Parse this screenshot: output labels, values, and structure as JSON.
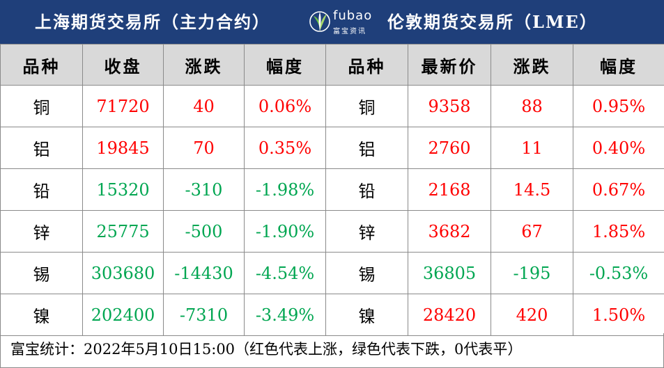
{
  "header": {
    "left_title": "上海期货交易所（主力合约）",
    "right_title": "伦敦期货交易所（LME）",
    "logo_text": "fubao",
    "logo_sub": "富宝资讯",
    "bg_color": "#1f3f7a"
  },
  "columns": [
    "品种",
    "收盘",
    "涨跌",
    "幅度",
    "品种",
    "最新价",
    "涨跌",
    "幅度"
  ],
  "colors": {
    "up": "#ff0000",
    "down": "#00a651"
  },
  "rows": [
    {
      "shfe": {
        "name": "铜",
        "close": "71720",
        "change": "40",
        "pct": "0.06%",
        "trend": "up"
      },
      "lme": {
        "name": "铜",
        "price": "9358",
        "change": "88",
        "pct": "0.95%",
        "trend": "up"
      }
    },
    {
      "shfe": {
        "name": "铝",
        "close": "19845",
        "change": "70",
        "pct": "0.35%",
        "trend": "up"
      },
      "lme": {
        "name": "铝",
        "price": "2760",
        "change": "11",
        "pct": "0.40%",
        "trend": "up"
      }
    },
    {
      "shfe": {
        "name": "铅",
        "close": "15320",
        "change": "-310",
        "pct": "-1.98%",
        "trend": "down"
      },
      "lme": {
        "name": "铅",
        "price": "2168",
        "change": "14.5",
        "pct": "0.67%",
        "trend": "up"
      }
    },
    {
      "shfe": {
        "name": "锌",
        "close": "25775",
        "change": "-500",
        "pct": "-1.90%",
        "trend": "down"
      },
      "lme": {
        "name": "锌",
        "price": "3682",
        "change": "67",
        "pct": "1.85%",
        "trend": "up"
      }
    },
    {
      "shfe": {
        "name": "锡",
        "close": "303680",
        "change": "-14430",
        "pct": "-4.54%",
        "trend": "down"
      },
      "lme": {
        "name": "锡",
        "price": "36805",
        "change": "-195",
        "pct": "-0.53%",
        "trend": "down"
      }
    },
    {
      "shfe": {
        "name": "镍",
        "close": "202400",
        "change": "-7310",
        "pct": "-3.49%",
        "trend": "down"
      },
      "lme": {
        "name": "镍",
        "price": "28420",
        "change": "420",
        "pct": "1.50%",
        "trend": "up"
      }
    }
  ],
  "footer": "富宝统计：2022年5月10日15:00（红色代表上涨，绿色代表下跌，0代表平）"
}
